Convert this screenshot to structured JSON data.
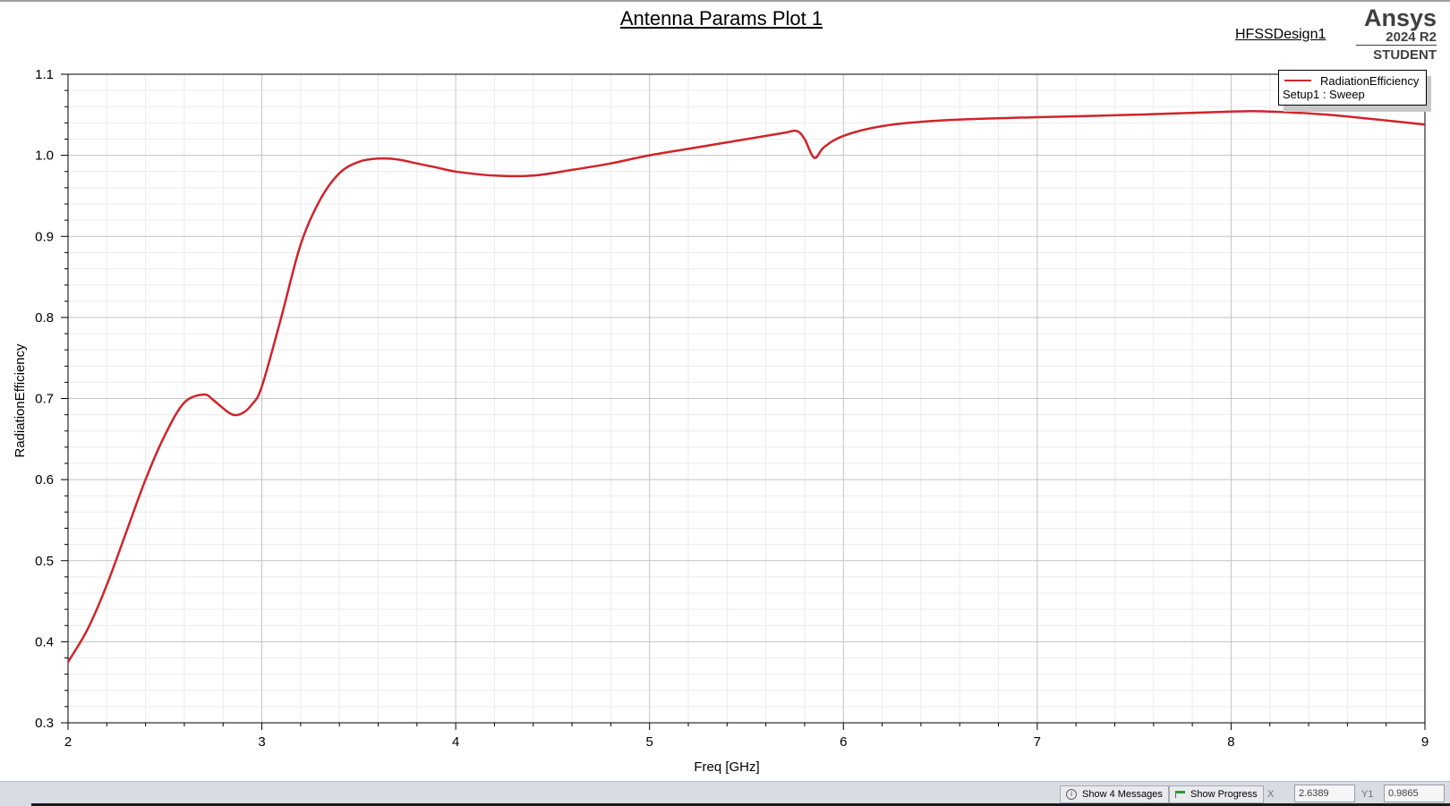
{
  "header": {
    "plot_title": "Antenna Params Plot 1",
    "design_name": "HFSSDesign1",
    "brand_name": "Ansys",
    "brand_version": "2024 R2",
    "brand_edition": "STUDENT"
  },
  "legend": {
    "series_label": "RadiationEfficiency",
    "setup_label": "Setup1 : Sweep"
  },
  "chart_data": {
    "type": "line",
    "xlabel": "Freq [GHz]",
    "ylabel": "RadiationEfficiency",
    "xlim": [
      2,
      9
    ],
    "ylim": [
      0.3,
      1.1
    ],
    "xticks": [
      "2",
      "3",
      "4",
      "5",
      "6",
      "7",
      "8",
      "9"
    ],
    "yticks": [
      "0.3",
      "0.4",
      "0.5",
      "0.6",
      "0.7",
      "0.8",
      "0.9",
      "1.0",
      "1.1"
    ],
    "grid": true,
    "legend_position": "top-right",
    "series": [
      {
        "name": "RadiationEfficiency",
        "color": "#d0242b",
        "x": [
          2.0,
          2.1,
          2.2,
          2.3,
          2.4,
          2.5,
          2.6,
          2.7,
          2.75,
          2.8,
          2.85,
          2.9,
          2.95,
          3.0,
          3.1,
          3.2,
          3.3,
          3.4,
          3.5,
          3.6,
          3.7,
          3.8,
          3.9,
          4.0,
          4.2,
          4.4,
          4.6,
          4.8,
          5.0,
          5.2,
          5.4,
          5.6,
          5.7,
          5.76,
          5.8,
          5.85,
          5.9,
          6.0,
          6.2,
          6.5,
          7.0,
          7.5,
          8.0,
          8.2,
          8.5,
          9.0
        ],
        "values": [
          0.375,
          0.415,
          0.47,
          0.535,
          0.6,
          0.655,
          0.695,
          0.705,
          0.698,
          0.688,
          0.68,
          0.682,
          0.693,
          0.715,
          0.8,
          0.89,
          0.945,
          0.978,
          0.992,
          0.996,
          0.995,
          0.99,
          0.985,
          0.98,
          0.975,
          0.975,
          0.982,
          0.99,
          1.0,
          1.008,
          1.016,
          1.024,
          1.028,
          1.03,
          1.02,
          0.997,
          1.01,
          1.024,
          1.036,
          1.043,
          1.047,
          1.05,
          1.054,
          1.054,
          1.05,
          1.038
        ]
      }
    ]
  },
  "status_bar": {
    "messages_button": "Show 4 Messages",
    "progress_button": "Show Progress",
    "x_label": "X",
    "x_value": "2.6389",
    "y_label": "Y1",
    "y_value": "0.9865"
  }
}
